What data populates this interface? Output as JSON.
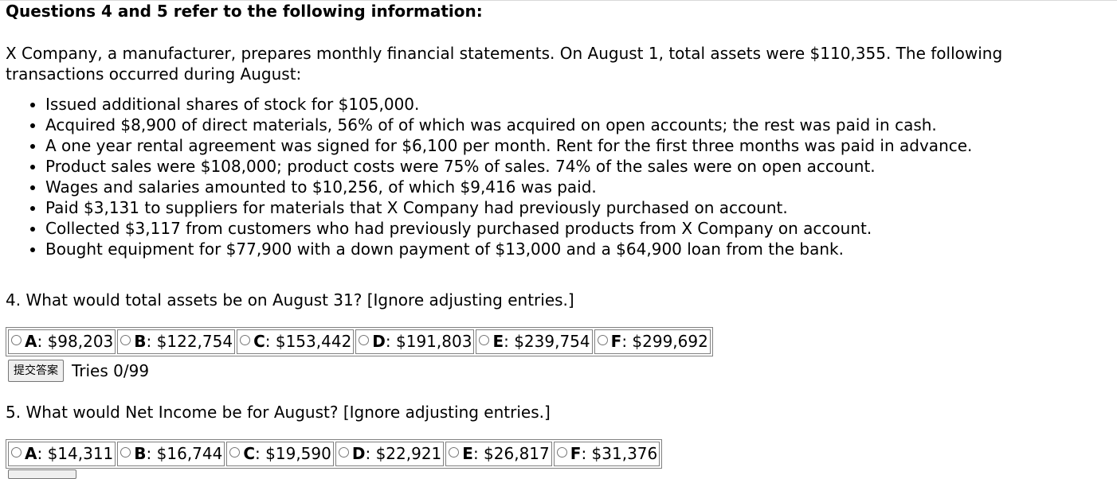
{
  "header": "Questions 4 and 5 refer to the following information:",
  "intro": "X Company, a manufacturer, prepares monthly financial statements. On August 1, total assets were $110,355. The following transactions occurred during August:",
  "transactions": [
    "Issued additional shares of stock for $105,000.",
    "Acquired $8,900 of direct materials, 56% of of which was acquired on open accounts; the rest was paid in cash.",
    "A one year rental agreement was signed for $6,100 per month. Rent for the first three months was paid in advance.",
    "Product sales were $108,000; product costs were 75% of sales. 74% of the sales were on open account.",
    "Wages and salaries amounted to $10,256, of which $9,416 was paid.",
    "Paid $3,131 to suppliers for materials that X Company had previously purchased on account.",
    "Collected $3,117 from customers who had previously purchased products from X Company on account.",
    "Bought equipment for $77,900 with a down payment of $13,000 and a $64,900 loan from the bank."
  ],
  "q4": {
    "text": "4. What would total assets be on August 31?  [Ignore adjusting entries.]",
    "options": [
      {
        "letter": "A",
        "value": ": $98,203"
      },
      {
        "letter": "B",
        "value": ": $122,754"
      },
      {
        "letter": "C",
        "value": ": $153,442"
      },
      {
        "letter": "D",
        "value": ": $191,803"
      },
      {
        "letter": "E",
        "value": ": $239,754"
      },
      {
        "letter": "F",
        "value": ": $299,692"
      }
    ],
    "submit_label": "提交答案",
    "tries": "Tries 0/99"
  },
  "q5": {
    "text": "5. What would Net Income be for August?  [Ignore adjusting entries.]",
    "options": [
      {
        "letter": "A",
        "value": ": $14,311"
      },
      {
        "letter": "B",
        "value": ": $16,744"
      },
      {
        "letter": "C",
        "value": ": $19,590"
      },
      {
        "letter": "D",
        "value": ": $22,921"
      },
      {
        "letter": "E",
        "value": ": $26,817"
      },
      {
        "letter": "F",
        "value": ": $31,376"
      }
    ]
  }
}
